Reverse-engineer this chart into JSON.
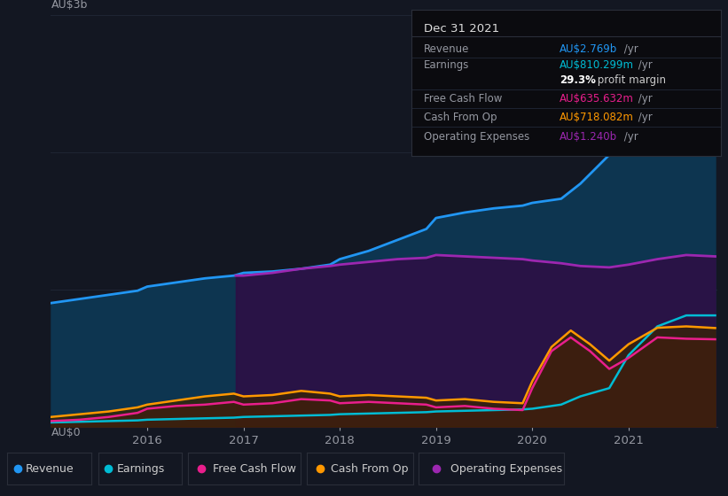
{
  "background_color": "#131722",
  "grid_color": "#1e2433",
  "x_ticks": [
    2016,
    2017,
    2018,
    2019,
    2020,
    2021
  ],
  "x_min": 2015.0,
  "x_max": 2021.92,
  "y_min": 0,
  "y_max": 3.0,
  "revenue_color": "#2196f3",
  "revenue_fill": "#0d3550",
  "op_exp_color": "#9c27b0",
  "op_exp_fill": "#2d1045",
  "fcf_color": "#e91e8c",
  "fcf_fill": "#4a1030",
  "cashop_color": "#ff9800",
  "cashop_fill": "#3a2500",
  "earnings_color": "#00bcd4",
  "earnings_fill": "#003040",
  "revenue_x": [
    2015.0,
    2015.3,
    2015.6,
    2015.9,
    2016.0,
    2016.3,
    2016.6,
    2016.9,
    2017.0,
    2017.3,
    2017.6,
    2017.9,
    2018.0,
    2018.3,
    2018.6,
    2018.9,
    2019.0,
    2019.3,
    2019.6,
    2019.9,
    2020.0,
    2020.3,
    2020.5,
    2020.8,
    2021.0,
    2021.3,
    2021.6,
    2021.9
  ],
  "revenue_y": [
    0.9,
    0.93,
    0.96,
    0.99,
    1.02,
    1.05,
    1.08,
    1.1,
    1.12,
    1.13,
    1.15,
    1.18,
    1.22,
    1.28,
    1.36,
    1.44,
    1.52,
    1.56,
    1.59,
    1.61,
    1.63,
    1.66,
    1.77,
    1.98,
    2.22,
    2.48,
    2.67,
    2.769
  ],
  "op_exp_x": [
    2016.92,
    2017.0,
    2017.3,
    2017.6,
    2017.9,
    2018.0,
    2018.3,
    2018.6,
    2018.9,
    2019.0,
    2019.3,
    2019.6,
    2019.9,
    2020.0,
    2020.3,
    2020.5,
    2020.8,
    2021.0,
    2021.3,
    2021.6,
    2021.9
  ],
  "op_exp_y": [
    1.1,
    1.1,
    1.12,
    1.15,
    1.17,
    1.18,
    1.2,
    1.22,
    1.23,
    1.25,
    1.24,
    1.23,
    1.22,
    1.21,
    1.19,
    1.17,
    1.16,
    1.18,
    1.22,
    1.25,
    1.24
  ],
  "fcf_x": [
    2015.0,
    2015.3,
    2015.6,
    2015.9,
    2016.0,
    2016.3,
    2016.6,
    2016.9,
    2017.0,
    2017.3,
    2017.6,
    2017.9,
    2018.0,
    2018.3,
    2018.6,
    2018.9,
    2019.0,
    2019.3,
    2019.6,
    2019.9,
    2020.0,
    2020.2,
    2020.4,
    2020.6,
    2020.8,
    2021.0,
    2021.3,
    2021.6,
    2021.9
  ],
  "fcf_y": [
    0.04,
    0.05,
    0.07,
    0.1,
    0.13,
    0.15,
    0.16,
    0.18,
    0.16,
    0.17,
    0.2,
    0.19,
    0.17,
    0.18,
    0.17,
    0.16,
    0.14,
    0.15,
    0.13,
    0.12,
    0.28,
    0.55,
    0.65,
    0.55,
    0.42,
    0.5,
    0.65,
    0.64,
    0.636
  ],
  "cashop_x": [
    2015.0,
    2015.3,
    2015.6,
    2015.9,
    2016.0,
    2016.3,
    2016.6,
    2016.9,
    2017.0,
    2017.3,
    2017.6,
    2017.9,
    2018.0,
    2018.3,
    2018.6,
    2018.9,
    2019.0,
    2019.3,
    2019.6,
    2019.9,
    2020.0,
    2020.2,
    2020.4,
    2020.6,
    2020.8,
    2021.0,
    2021.3,
    2021.6,
    2021.9
  ],
  "cashop_y": [
    0.07,
    0.09,
    0.11,
    0.14,
    0.16,
    0.19,
    0.22,
    0.24,
    0.22,
    0.23,
    0.26,
    0.24,
    0.22,
    0.23,
    0.22,
    0.21,
    0.19,
    0.2,
    0.18,
    0.17,
    0.33,
    0.58,
    0.7,
    0.6,
    0.48,
    0.6,
    0.72,
    0.73,
    0.718
  ],
  "earnings_x": [
    2015.0,
    2015.3,
    2015.6,
    2015.9,
    2016.0,
    2016.3,
    2016.6,
    2016.9,
    2017.0,
    2017.3,
    2017.6,
    2017.9,
    2018.0,
    2018.3,
    2018.6,
    2018.9,
    2019.0,
    2019.3,
    2019.6,
    2019.9,
    2020.0,
    2020.3,
    2020.5,
    2020.8,
    2021.0,
    2021.3,
    2021.6,
    2021.9
  ],
  "earnings_y": [
    0.03,
    0.035,
    0.04,
    0.045,
    0.05,
    0.055,
    0.06,
    0.065,
    0.07,
    0.075,
    0.08,
    0.085,
    0.09,
    0.095,
    0.1,
    0.105,
    0.11,
    0.115,
    0.12,
    0.125,
    0.13,
    0.16,
    0.22,
    0.28,
    0.52,
    0.73,
    0.81,
    0.81
  ],
  "tooltip_date": "Dec 31 2021",
  "tooltip_rows": [
    {
      "label": "Revenue",
      "value": "AU$2.769b",
      "suffix": " /yr",
      "value_color": "#2196f3",
      "sep_below": true
    },
    {
      "label": "Earnings",
      "value": "AU$810.299m",
      "suffix": " /yr",
      "value_color": "#00bcd4",
      "sep_below": false
    },
    {
      "label": "",
      "value": "29.3%",
      "suffix": " profit margin",
      "value_color": "#ffffff",
      "value_bold": true,
      "suffix_color": "#cccccc",
      "sep_below": true
    },
    {
      "label": "Free Cash Flow",
      "value": "AU$635.632m",
      "suffix": " /yr",
      "value_color": "#e91e8c",
      "sep_below": true
    },
    {
      "label": "Cash From Op",
      "value": "AU$718.082m",
      "suffix": " /yr",
      "value_color": "#ff9800",
      "sep_below": true
    },
    {
      "label": "Operating Expenses",
      "value": "AU$1.240b",
      "suffix": " /yr",
      "value_color": "#9c27b0",
      "sep_below": false
    }
  ],
  "legend": [
    {
      "label": "Revenue",
      "color": "#2196f3"
    },
    {
      "label": "Earnings",
      "color": "#00bcd4"
    },
    {
      "label": "Free Cash Flow",
      "color": "#e91e8c"
    },
    {
      "label": "Cash From Op",
      "color": "#ff9800"
    },
    {
      "label": "Operating Expenses",
      "color": "#9c27b0"
    }
  ]
}
